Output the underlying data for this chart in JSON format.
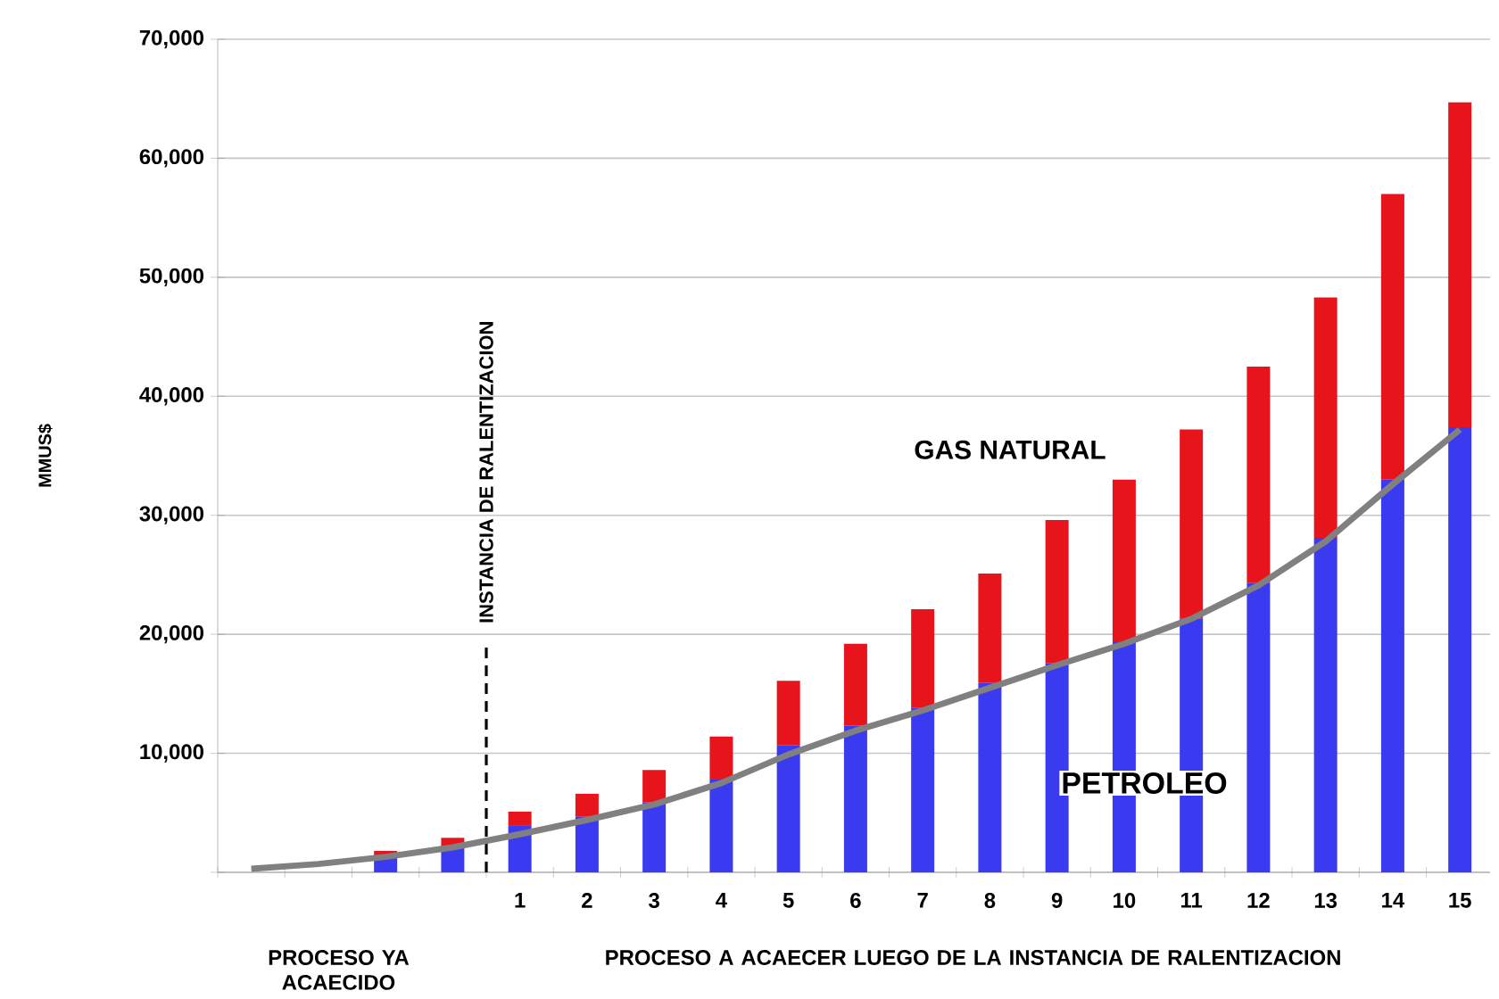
{
  "chart_data": {
    "type": "bar",
    "stacked": true,
    "ylabel": "MMUS$",
    "categories": [
      null,
      null,
      null,
      null,
      "1",
      "2",
      "3",
      "4",
      "5",
      "6",
      "7",
      "8",
      "9",
      "10",
      "11",
      "12",
      "13",
      "14",
      "15"
    ],
    "series": [
      {
        "name": "PETROLEO",
        "color": "#3a3af0",
        "values": [
          null,
          null,
          1400,
          2100,
          3900,
          4700,
          5900,
          7800,
          10700,
          12300,
          13800,
          15900,
          17600,
          19400,
          21300,
          24300,
          28100,
          33000,
          37400
        ]
      },
      {
        "name": "GAS NATURAL",
        "color": "#e8141c",
        "values": [
          null,
          null,
          400,
          800,
          1200,
          1900,
          2700,
          3600,
          5400,
          6900,
          8300,
          9200,
          12000,
          13600,
          15900,
          18200,
          20200,
          24000,
          27300
        ]
      },
      {
        "type": "line",
        "color": "#808080",
        "values": [
          300,
          700,
          1300,
          2100,
          3200,
          4400,
          5700,
          7500,
          9900,
          11900,
          13600,
          15500,
          17400,
          19200,
          21300,
          24100,
          27800,
          32600,
          37200
        ]
      }
    ],
    "ylim": [
      0,
      70000
    ],
    "yticks": [
      {
        "value": 0,
        "label": null
      },
      {
        "value": 10000,
        "label": "10,000"
      },
      {
        "value": 20000,
        "label": "20,000"
      },
      {
        "value": 30000,
        "label": "30,000"
      },
      {
        "value": 40000,
        "label": "40,000"
      },
      {
        "value": 50000,
        "label": "50,000"
      },
      {
        "value": 60000,
        "label": "60,000"
      },
      {
        "value": 70000,
        "label": "70,000"
      }
    ],
    "grid": "y",
    "marker": "none",
    "line_style": "solid",
    "annotations": [
      "INSTANCIA DE RALENTIZACION",
      "PROCESO YA ACAECIDO",
      "PROCESO A ACAECER LUEGO DE LA INSTANCIA DE RALENTIZACION"
    ]
  }
}
